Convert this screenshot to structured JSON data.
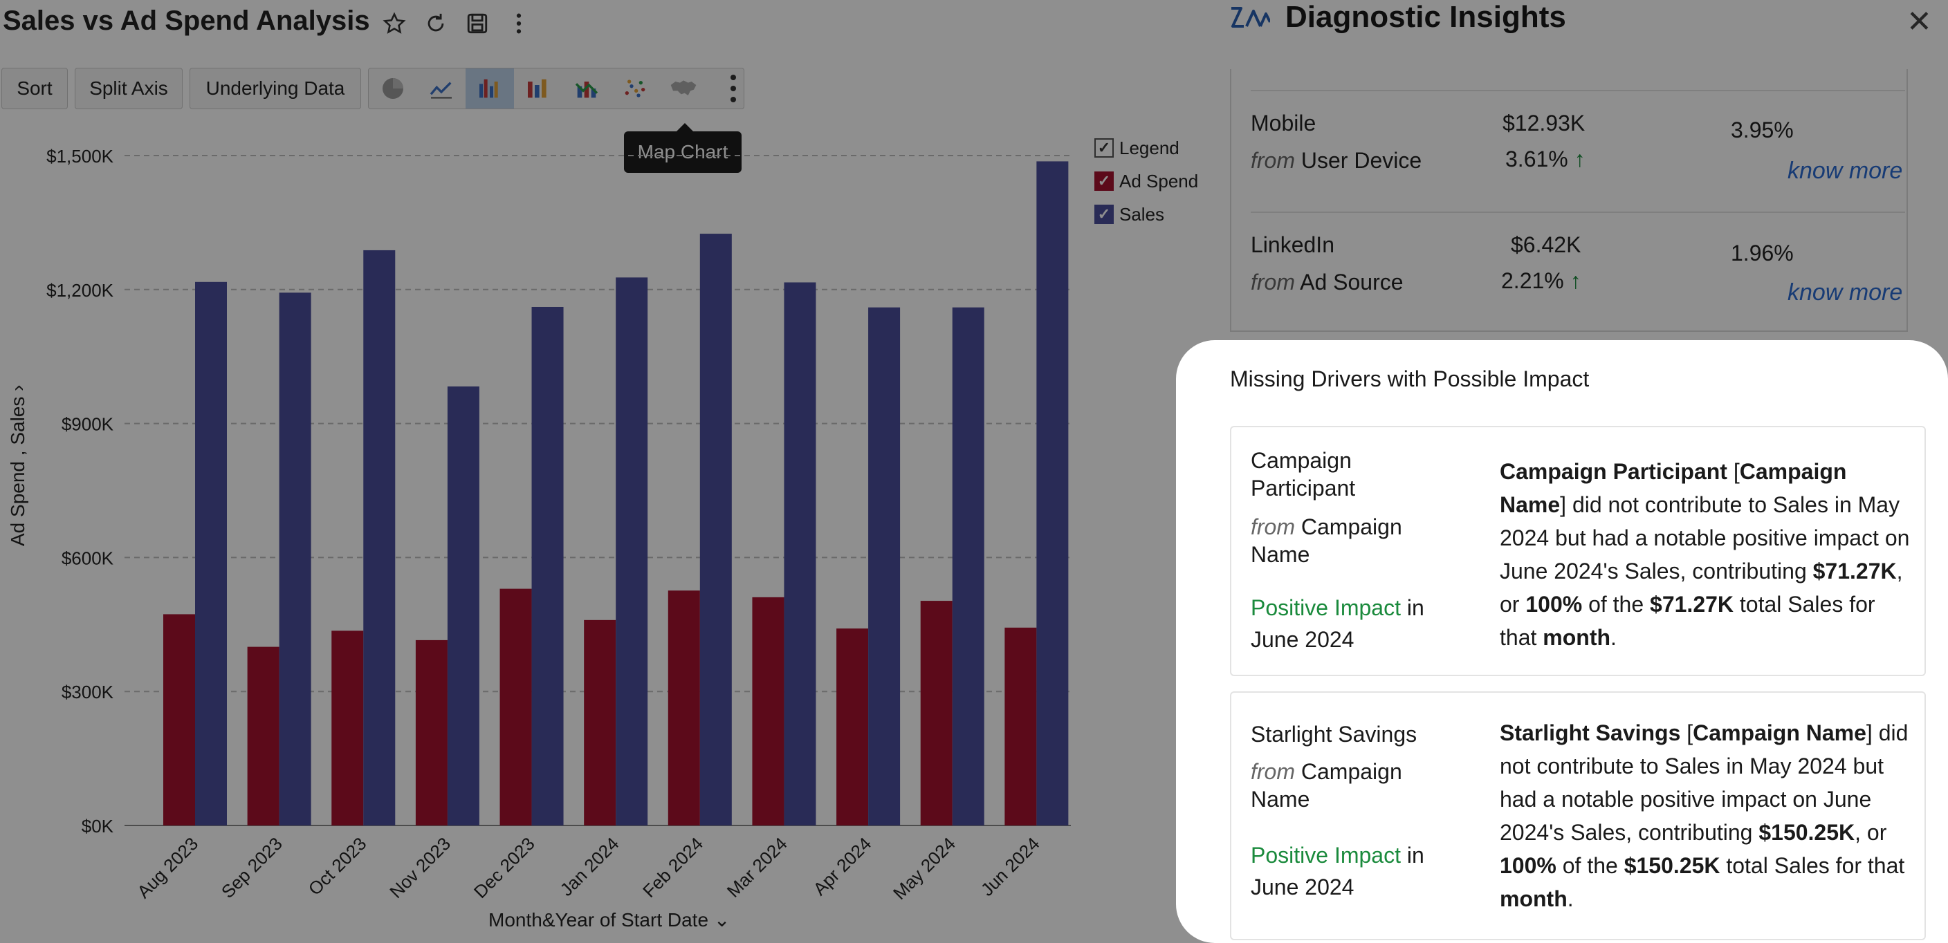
{
  "header": {
    "title": "Sales vs Ad Spend Analysis"
  },
  "toolbar": {
    "sort_label": "Sort",
    "split_axis_label": "Split Axis",
    "underlying_data_label": "Underlying Data"
  },
  "tooltip": {
    "text": "Map Chart"
  },
  "legend": {
    "legend_label": "Legend",
    "ad_spend_label": "Ad Spend",
    "sales_label": "Sales"
  },
  "axis": {
    "y_title": "Ad Spend , Sales",
    "x_title": "Month&Year of Start Date"
  },
  "chart_data": {
    "type": "bar",
    "categories": [
      "Aug 2023",
      "Sep 2023",
      "Oct 2023",
      "Nov 2023",
      "Dec 2023",
      "Jan 2024",
      "Feb 2024",
      "Mar 2024",
      "Apr 2024",
      "May 2024",
      "Jun 2024"
    ],
    "series": [
      {
        "name": "Ad Spend",
        "color": "#a5122f",
        "values": [
          473,
          400,
          436,
          415,
          530,
          460,
          526,
          511,
          441,
          503,
          443
        ]
      },
      {
        "name": "Sales",
        "color": "#4a4d9a",
        "values": [
          1217,
          1193,
          1288,
          983,
          1161,
          1227,
          1325,
          1216,
          1160,
          1160,
          1487
        ]
      }
    ],
    "ylim": [
      0,
      1500
    ],
    "yticks": [
      "$0K",
      "$300K",
      "$600K",
      "$900K",
      "$1,200K",
      "$1,500K"
    ],
    "ytick_values": [
      0,
      300,
      600,
      900,
      1200,
      1500
    ],
    "xlabel": "Month&Year of Start Date",
    "ylabel": "Ad Spend , Sales",
    "grid": true,
    "legend_position": "top-right"
  },
  "insights": {
    "title": "Diagnostic Insights",
    "top_items": [
      {
        "name": "Mobile",
        "from_word": "from",
        "source": "User Device",
        "value": "$12.93K",
        "change": "3.61%",
        "share": "3.95%",
        "link": "know more"
      },
      {
        "name": "LinkedIn",
        "from_word": "from",
        "source": "Ad Source",
        "value": "$6.42K",
        "change": "2.21%",
        "share": "1.96%",
        "link": "know more"
      }
    ],
    "missing_title": "Missing Drivers with Possible Impact",
    "missing": [
      {
        "name": "Campaign Participant",
        "from_word": "from",
        "source": "Campaign Name",
        "impact": "Positive Impact",
        "impact_suffix": "in",
        "period": "June 2024",
        "d1": "Campaign Participant",
        "d2": " [",
        "d3": "Campaign Name",
        "d4": "] did not contribute to Sales in May 2024 but had a notable positive impact on June 2024's Sales, contributing ",
        "d5": "$71.27K",
        "d6": ", or ",
        "d7": "100%",
        "d8": " of the ",
        "d9": "$71.27K",
        "d10": " total Sales for that ",
        "d11": "month",
        "d12": "."
      },
      {
        "name": "Starlight Savings",
        "from_word": "from",
        "source": "Campaign Name",
        "impact": "Positive Impact",
        "impact_suffix": "in",
        "period": "June 2024",
        "d1": "Starlight Savings",
        "d2": " [",
        "d3": "Campaign Name",
        "d4": "] did not contribute to Sales in May 2024 but had a notable positive impact on June 2024's Sales, contributing ",
        "d5": "$150.25K",
        "d6": ", or ",
        "d7": "100%",
        "d8": " of the ",
        "d9": "$150.25K",
        "d10": " total Sales for that ",
        "d11": "month",
        "d12": "."
      }
    ]
  }
}
